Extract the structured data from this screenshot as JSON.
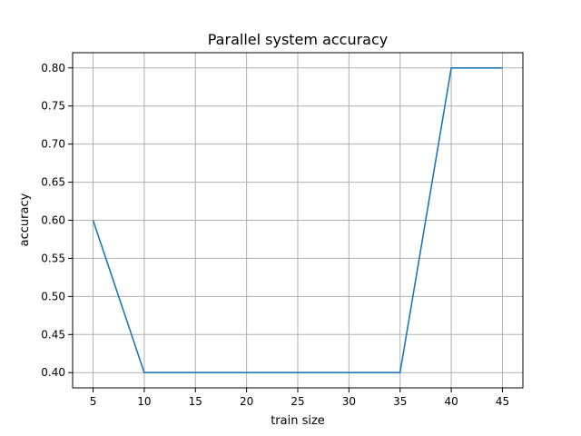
{
  "chart_data": {
    "type": "line",
    "title": "Parallel system accuracy",
    "xlabel": "train size",
    "ylabel": "accuracy",
    "x": [
      5,
      10,
      15,
      20,
      25,
      30,
      35,
      40,
      45
    ],
    "series": [
      {
        "values": [
          0.6,
          0.4,
          0.4,
          0.4,
          0.4,
          0.4,
          0.4,
          0.8,
          0.8
        ],
        "color": "#1f77b4"
      }
    ],
    "xticks": [
      5,
      10,
      15,
      20,
      25,
      30,
      35,
      40,
      45
    ],
    "yticks": [
      0.4,
      0.45,
      0.5,
      0.55,
      0.6,
      0.65,
      0.7,
      0.75,
      0.8
    ],
    "ytick_labels": [
      "0.40",
      "0.45",
      "0.50",
      "0.55",
      "0.60",
      "0.65",
      "0.70",
      "0.75",
      "0.80"
    ],
    "xlim": [
      3,
      47
    ],
    "ylim": [
      0.38,
      0.82
    ],
    "grid": true
  }
}
